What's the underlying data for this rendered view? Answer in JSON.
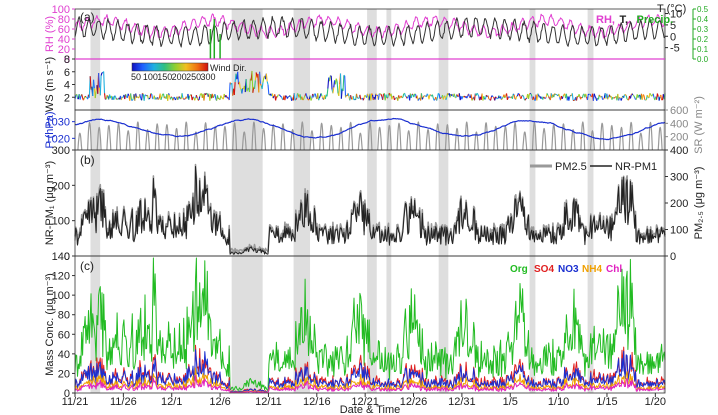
{
  "chart_data": {
    "type": "line",
    "xlabel": "Date & Time",
    "x_ticks": [
      "11/21",
      "11/26",
      "12/1",
      "12/6",
      "12/11",
      "12/16",
      "12/21",
      "12/26",
      "12/31",
      "1/5",
      "1/10",
      "1/15",
      "1/20"
    ],
    "x_range_days": [
      0,
      61
    ],
    "shaded_periods": [
      [
        1.6,
        2.6
      ],
      [
        16.2,
        19.4
      ],
      [
        22.6,
        24.3
      ],
      [
        30.2,
        31.2
      ],
      [
        32.2,
        32.7
      ],
      [
        37.6,
        38.6
      ],
      [
        47.0,
        47.6
      ],
      [
        53.0,
        53.6
      ],
      [
        60.8,
        61.0
      ]
    ],
    "panels": [
      {
        "id": "a",
        "panel_label": "(a)",
        "subplots": [
          {
            "id": "met",
            "left_axis": {
              "label": "RH (%)",
              "range": [
                0,
                100
              ],
              "ticks": [
                "0",
                "20",
                "40",
                "60",
                "80",
                "100"
              ],
              "color": "#e040d0"
            },
            "right_axis": {
              "label": "T (°C)",
              "range": [
                -10,
                12
              ],
              "ticks": [
                "-5",
                "0",
                "5",
                "10"
              ],
              "color": "#222222"
            },
            "right_axis_2": {
              "range": [
                0,
                0.5
              ],
              "ticks": [
                "0.0",
                "0.1",
                "0.2",
                "0.3",
                "0.4",
                "0.5"
              ],
              "color": "#22aa22"
            },
            "legend": [
              {
                "label": "RH,",
                "color": "#e040d0"
              },
              {
                "label": "T,",
                "color": "#222222"
              },
              {
                "label": "Precip.",
                "color": "#22aa22"
              }
            ],
            "series": [
              {
                "name": "RH",
                "color": "#e040d0",
                "base": 65,
                "amp": 20,
                "noise": 8,
                "seed": 11
              },
              {
                "name": "T",
                "color": "#333333",
                "base": 2,
                "amp": 4,
                "noise": 2,
                "seed": 23
              },
              {
                "name": "Precip.",
                "color": "#22aa22",
                "spikes": [
                  [
                    14.0,
                    0.3
                  ],
                  [
                    14.4,
                    0.4
                  ],
                  [
                    15.0,
                    0.25
                  ]
                ]
              }
            ]
          },
          {
            "id": "ws",
            "left_axis": {
              "label": "WS (m s⁻¹)",
              "range": [
                0,
                8
              ],
              "ticks": [
                "2",
                "4",
                "6",
                "8"
              ]
            },
            "colorbar": {
              "label": "Wind Dir.",
              "ticks": [
                "50",
                "100",
                "150",
                "200",
                "250",
                "300"
              ]
            },
            "series": [
              {
                "name": "WS",
                "base": 1.8,
                "noise": 1.2,
                "seed": 5
              }
            ]
          },
          {
            "id": "pres",
            "left_axis": {
              "label": "P (hPa)",
              "range": [
                1013,
                1037
              ],
              "ticks": [
                "1020",
                "1030"
              ],
              "color": "#1a2fd0"
            },
            "right_axis": {
              "label": "SR (W m⁻²)",
              "range": [
                0,
                600
              ],
              "ticks": [
                "200",
                "400",
                "600"
              ],
              "color": "#888888"
            },
            "series": [
              {
                "name": "P",
                "color": "#1a2fd0",
                "base": 1026,
                "amp": 5,
                "seed": 31
              },
              {
                "name": "SR",
                "color": "#999999",
                "peak": 420
              }
            ]
          }
        ]
      },
      {
        "id": "b",
        "panel_label": "(b)",
        "left_axis": {
          "label": "NR-PM₁ (μg m⁻³)",
          "range": [
            0,
            300
          ],
          "ticks": [
            "0",
            "100",
            "200",
            "300"
          ]
        },
        "right_axis": {
          "label": "PM₂.₅ (μg m⁻³)",
          "range": [
            0,
            400
          ],
          "ticks": [
            "0",
            "100",
            "200",
            "300",
            "400"
          ]
        },
        "legend": [
          {
            "label": "PM2.5",
            "color": "#999999"
          },
          {
            "label": "NR-PM1",
            "color": "#222222"
          }
        ],
        "series": [
          {
            "name": "PM2.5",
            "color": "#999999",
            "seed": 41
          },
          {
            "name": "NR-PM1",
            "color": "#222222",
            "seed": 41
          }
        ]
      },
      {
        "id": "c",
        "panel_label": "(c)",
        "left_axis": {
          "label": "Mass Conc. (μg m⁻³)",
          "range": [
            0,
            140
          ],
          "ticks": [
            "0",
            "20",
            "40",
            "60",
            "80",
            "100",
            "120",
            "140"
          ]
        },
        "legend": [
          {
            "label": "Org",
            "color": "#22bb22"
          },
          {
            "label": "SO4",
            "color": "#e02020"
          },
          {
            "label": "NO3",
            "color": "#1a2fd0"
          },
          {
            "label": "NH4",
            "color": "#f0a000"
          },
          {
            "label": "Chl",
            "color": "#e020c0"
          }
        ],
        "series": [
          {
            "name": "Org",
            "color": "#22bb22",
            "scale": 0.55
          },
          {
            "name": "SO4",
            "color": "#e02020",
            "scale": 0.18
          },
          {
            "name": "NO3",
            "color": "#1a2fd0",
            "scale": 0.16
          },
          {
            "name": "NH4",
            "color": "#f0a000",
            "scale": 0.09
          },
          {
            "name": "Chl",
            "color": "#e020c0",
            "scale": 0.06
          }
        ]
      }
    ]
  }
}
